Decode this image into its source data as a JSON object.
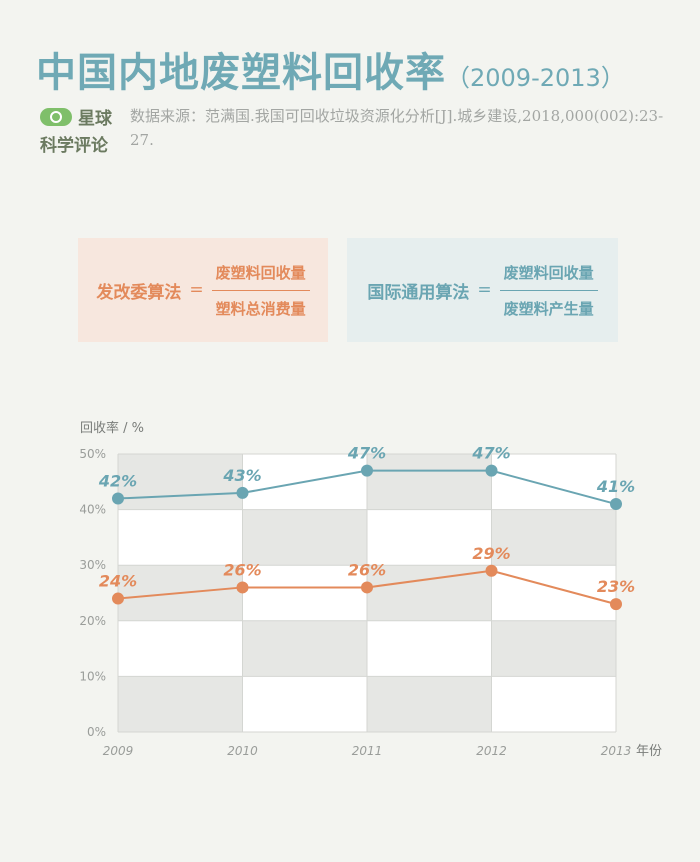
{
  "header": {
    "title": "中国内地废塑料回收率",
    "years": "（2009-2013）"
  },
  "logo": {
    "line1": "星球",
    "line2": "科学评论"
  },
  "source": {
    "label": "数据来源：",
    "text": "范满国.我国可回收垃圾资源化分析[J].城乡建设,2018,000(002):23-27."
  },
  "formulas": {
    "ndrc": {
      "name": "发改委算法",
      "equals": "=",
      "numerator": "废塑料回收量",
      "denominator": "塑料总消费量"
    },
    "intl": {
      "name": "国际通用算法",
      "equals": "=",
      "numerator": "废塑料回收量",
      "denominator": "废塑料产生量"
    }
  },
  "colors": {
    "accent_blue": "#6aa5b2",
    "accent_orange": "#e38a5b",
    "grid_shade": "#e6e7e4"
  },
  "chart_data": {
    "type": "line",
    "ylabel": "回收率 / %",
    "xlabel": "年份",
    "categories": [
      "2009",
      "2010",
      "2011",
      "2012",
      "2013"
    ],
    "y_ticks": [
      "0%",
      "10%",
      "20%",
      "30%",
      "40%",
      "50%"
    ],
    "ylim": [
      0,
      50
    ],
    "grid": true,
    "series": [
      {
        "name": "国际通用算法",
        "color": "#6aa5b2",
        "values": [
          42,
          43,
          47,
          47,
          41
        ],
        "labels": [
          "42%",
          "43%",
          "47%",
          "47%",
          "41%"
        ]
      },
      {
        "name": "发改委算法",
        "color": "#e38a5b",
        "values": [
          24,
          26,
          26,
          29,
          23
        ],
        "labels": [
          "24%",
          "26%",
          "26%",
          "29%",
          "23%"
        ]
      }
    ]
  }
}
